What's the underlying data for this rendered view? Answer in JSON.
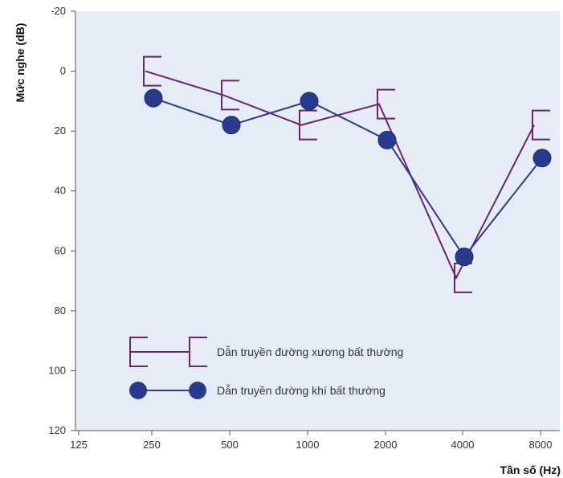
{
  "chart_data": {
    "type": "line",
    "title": "",
    "xlabel": "Tần số (Hz)",
    "ylabel": "Mức nghe (dB)",
    "x_ticks": [
      "125",
      "250",
      "500",
      "1000",
      "2000",
      "4000",
      "8000"
    ],
    "y_ticks": [
      "-20",
      "0",
      "20",
      "40",
      "60",
      "80",
      "100",
      "120"
    ],
    "ylim": [
      -20,
      120
    ],
    "y_inverted": true,
    "grid": false,
    "legend_position": "bottom-left",
    "series": [
      {
        "name": "Dẫn truyền đường xương bất thường",
        "marker": "bracket",
        "color": "#6b2468",
        "x": [
          "250",
          "500",
          "1000",
          "2000",
          "4000",
          "8000"
        ],
        "values": [
          0,
          8,
          18,
          11,
          69,
          18
        ]
      },
      {
        "name": "Dẫn truyền đường khí bất thường",
        "marker": "circle",
        "color": "#2a3a8c",
        "x": [
          "250",
          "500",
          "1000",
          "2000",
          "4000",
          "8000"
        ],
        "values": [
          9,
          18,
          10,
          23,
          62,
          29
        ]
      }
    ]
  }
}
